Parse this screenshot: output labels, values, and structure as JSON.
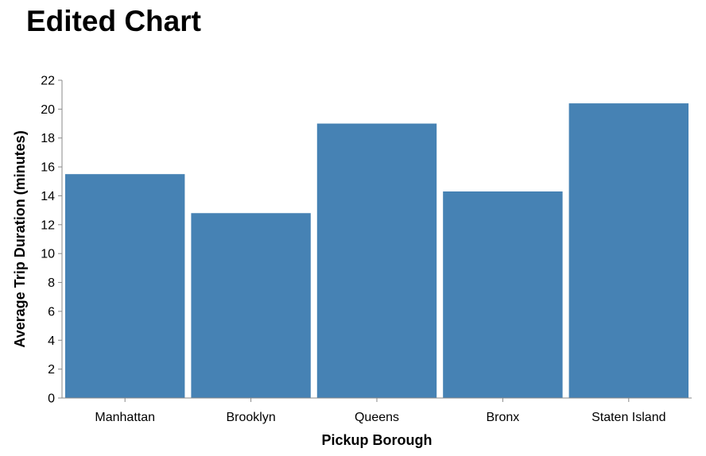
{
  "chart_data": {
    "type": "bar",
    "title": "Edited Chart",
    "xlabel": "Pickup Borough",
    "ylabel": "Average Trip Duration (minutes)",
    "categories": [
      "Manhattan",
      "Brooklyn",
      "Queens",
      "Bronx",
      "Staten Island"
    ],
    "values": [
      15.5,
      12.8,
      19.0,
      14.3,
      20.4
    ],
    "ylim": [
      0,
      22
    ],
    "yticks": [
      0,
      2,
      4,
      6,
      8,
      10,
      12,
      14,
      16,
      18,
      20,
      22
    ],
    "grid": false,
    "legend": "none",
    "bar_color": "#4682b4",
    "axis_color": "#888888"
  }
}
